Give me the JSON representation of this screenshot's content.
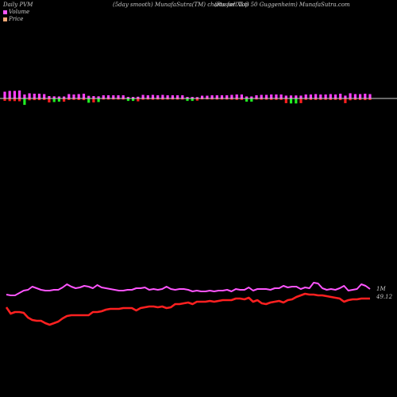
{
  "header": {
    "left": "Daily PVM",
    "center": "(5day smooth) MunafaSutra(TM) charts for XLG",
    "right": "(Russell Top 50 Guggenheim) MunafaSutra.com"
  },
  "legend": [
    {
      "label": "Volume",
      "color": "#ff55ff"
    },
    {
      "label": "Price",
      "color": "#ffaa77"
    }
  ],
  "chart_data": {
    "type": "line",
    "pvm_bars": {
      "direction": [
        "up",
        "up",
        "up",
        "up",
        "down",
        "up",
        "up",
        "up",
        "up",
        "down",
        "down",
        "down",
        "down",
        "up",
        "up",
        "up",
        "up",
        "down",
        "down",
        "down",
        "up",
        "up",
        "up",
        "up",
        "up",
        "down",
        "down",
        "down",
        "up",
        "up",
        "up",
        "up",
        "up",
        "up",
        "up",
        "up",
        "up",
        "down",
        "down",
        "down",
        "up",
        "up",
        "up",
        "up",
        "up",
        "up",
        "up",
        "up",
        "up",
        "down",
        "down",
        "up",
        "up",
        "up",
        "up",
        "up",
        "up",
        "down",
        "down",
        "down",
        "down",
        "up",
        "up",
        "up",
        "up",
        "up",
        "up",
        "up",
        "up",
        "down",
        "up",
        "up",
        "up",
        "up",
        "up"
      ],
      "magnitude": [
        0.85,
        0.95,
        0.95,
        1.0,
        0.9,
        0.65,
        0.6,
        0.6,
        0.55,
        0.55,
        0.5,
        0.45,
        0.45,
        0.55,
        0.5,
        0.55,
        0.6,
        0.6,
        0.55,
        0.5,
        0.4,
        0.4,
        0.4,
        0.4,
        0.4,
        0.35,
        0.35,
        0.4,
        0.45,
        0.4,
        0.45,
        0.4,
        0.45,
        0.4,
        0.4,
        0.4,
        0.4,
        0.35,
        0.35,
        0.3,
        0.35,
        0.35,
        0.4,
        0.4,
        0.4,
        0.4,
        0.45,
        0.5,
        0.5,
        0.45,
        0.45,
        0.4,
        0.45,
        0.45,
        0.5,
        0.5,
        0.5,
        0.65,
        0.7,
        0.7,
        0.65,
        0.5,
        0.5,
        0.55,
        0.5,
        0.5,
        0.55,
        0.5,
        0.6,
        0.65,
        0.65,
        0.55,
        0.55,
        0.6,
        0.55
      ]
    },
    "series": [
      {
        "key": "volume_line",
        "color": "#ff55ff",
        "values": [
          0.58,
          0.66,
          0.63,
          0.64,
          0.6,
          0.67,
          0.63,
          0.6,
          0.63,
          0.6,
          0.55,
          0.54,
          0.54,
          0.56,
          0.68,
          0.66,
          0.58,
          0.67,
          0.58,
          0.62,
          0.62,
          0.6,
          0.56,
          0.53,
          0.51,
          0.48,
          0.47,
          0.47,
          0.5,
          0.55,
          0.53,
          0.54,
          0.6,
          0.55,
          0.57,
          0.54,
          0.53,
          0.53,
          0.58,
          0.56,
          0.57,
          0.57,
          0.5,
          0.5,
          0.52,
          0.56,
          0.53,
          0.54,
          0.55,
          0.55,
          0.56,
          0.58,
          0.58,
          0.59,
          0.5,
          0.58,
          0.55,
          0.6,
          0.55,
          0.57,
          0.58,
          0.57,
          0.58,
          0.6,
          0.57,
          0.58,
          0.6,
          0.57,
          0.56,
          0.75,
          0.73,
          0.6,
          0.58,
          0.58,
          0.54,
          0.54,
          0.55,
          0.53,
          0.62,
          0.48,
          0.5,
          0.5,
          0.7,
          0.67,
          0.54,
          0.52
        ]
      },
      {
        "key": "price_line",
        "color": "#ff2020",
        "values": [
          0.47,
          0.43,
          0.42,
          0.41,
          0.4,
          0.4,
          0.39,
          0.38,
          0.38,
          0.38,
          0.38,
          0.39,
          0.4,
          0.41,
          0.42,
          0.43,
          0.43,
          0.43,
          0.43,
          0.43,
          0.44,
          0.44,
          0.44,
          0.44,
          0.45,
          0.45,
          0.45,
          0.45,
          0.45,
          0.45,
          0.44,
          0.44,
          0.45,
          0.46,
          0.46,
          0.46,
          0.46,
          0.45,
          0.45,
          0.45,
          0.45,
          0.45,
          0.45,
          0.45,
          0.46,
          0.46,
          0.46,
          0.46,
          0.47,
          0.47,
          0.47,
          0.47,
          0.47,
          0.48,
          0.48,
          0.48,
          0.48,
          0.48,
          0.48,
          0.48,
          0.48,
          0.48,
          0.48,
          0.49,
          0.49,
          0.5,
          0.5,
          0.52,
          0.55,
          0.57,
          0.56,
          0.56,
          0.56,
          0.56,
          0.55,
          0.55,
          0.54,
          0.54,
          0.52,
          0.53,
          0.54,
          0.54,
          0.54,
          0.54,
          0.54
        ]
      }
    ],
    "price_y": [
      387,
      395,
      393,
      393,
      394,
      400,
      403,
      404,
      404,
      407,
      409,
      407,
      405,
      401,
      398,
      397,
      397,
      397,
      397,
      397,
      393,
      393,
      392,
      390,
      389,
      389,
      389,
      388,
      388,
      388,
      391,
      388,
      387,
      386,
      386,
      387,
      386,
      388,
      387,
      383,
      383,
      382,
      381,
      383,
      380,
      380,
      380,
      379,
      380,
      379,
      378,
      378,
      378,
      376,
      376,
      377,
      375,
      380,
      378,
      382,
      383,
      381,
      380,
      379,
      381,
      378,
      377,
      374,
      372,
      370,
      371,
      371,
      372,
      372,
      373,
      374,
      375,
      376,
      380,
      378,
      377,
      377,
      376,
      376,
      376
    ],
    "vol_y": [
      371,
      372,
      372,
      369,
      366,
      365,
      361,
      363,
      365,
      366,
      366,
      365,
      365,
      362,
      358,
      361,
      363,
      362,
      360,
      361,
      363,
      359,
      362,
      363,
      364,
      365,
      366,
      366,
      365,
      365,
      363,
      363,
      362,
      365,
      364,
      365,
      364,
      361,
      364,
      365,
      364,
      364,
      365,
      367,
      366,
      367,
      367,
      366,
      367,
      366,
      366,
      365,
      367,
      364,
      365,
      365,
      362,
      366,
      364,
      364,
      364,
      365,
      363,
      363,
      360,
      362,
      361,
      361,
      364,
      362,
      363,
      356,
      357,
      363,
      365,
      364,
      365,
      363,
      360,
      366,
      365,
      364,
      358,
      360,
      364
    ],
    "end_labels": {
      "volume": "1M",
      "price": "49.12"
    }
  }
}
